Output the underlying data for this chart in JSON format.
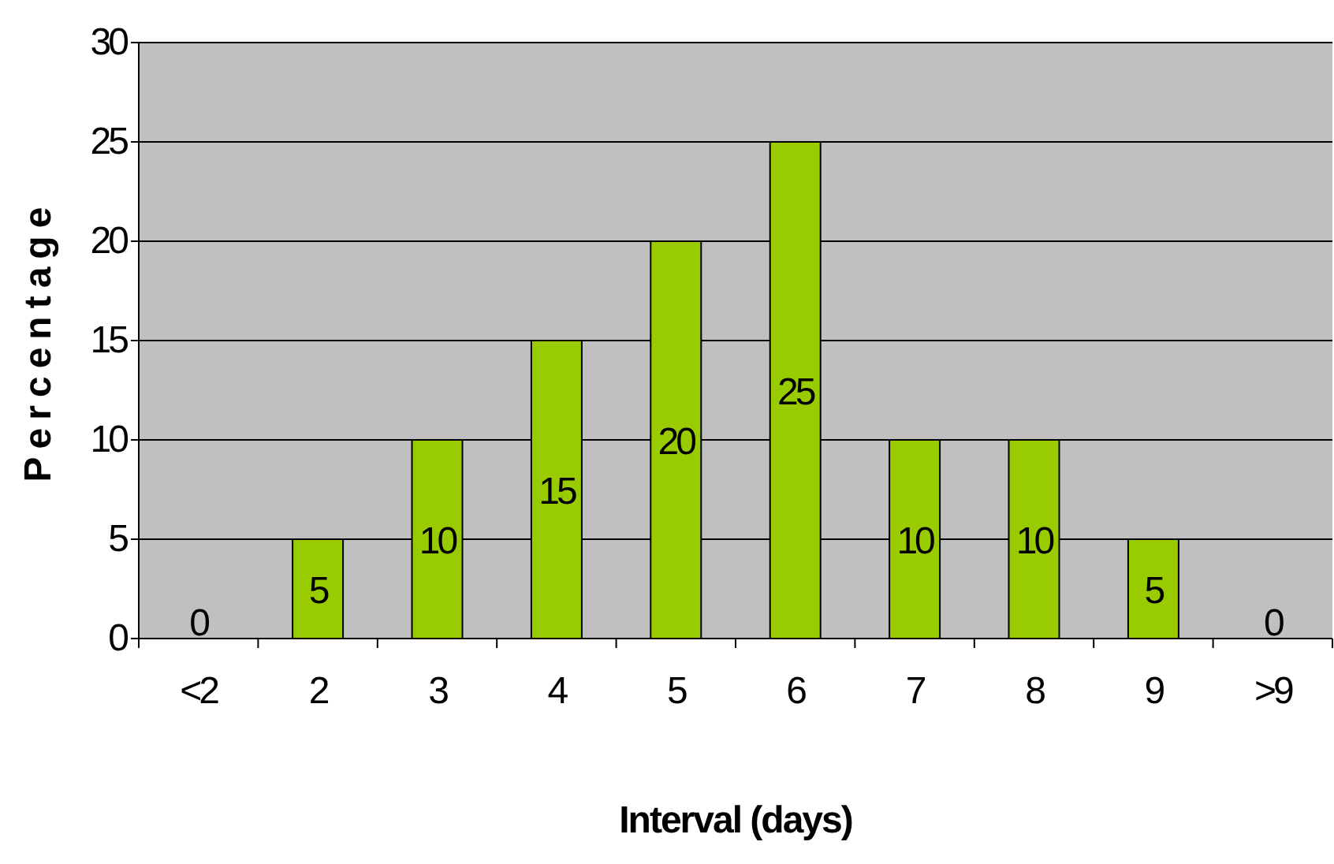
{
  "chart_data": {
    "type": "bar",
    "xlabel": "Interval (days)",
    "ylabel": "Percentage",
    "categories": [
      "<2",
      "2",
      "3",
      "4",
      "5",
      "6",
      "7",
      "8",
      "9",
      ">9"
    ],
    "values": [
      0,
      5,
      10,
      15,
      20,
      25,
      10,
      10,
      5,
      0
    ],
    "color": "#99cc00",
    "ylim": [
      0,
      30
    ],
    "yticks": [
      0,
      5,
      10,
      15,
      20,
      25,
      30
    ],
    "grid": "y",
    "data_labels": true
  }
}
